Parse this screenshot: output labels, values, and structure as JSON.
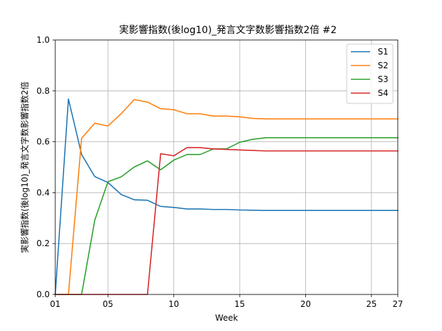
{
  "chart_data": {
    "type": "line",
    "title": "実影響指数(後log10)_発言文字数影響指数2倍 #2",
    "xlabel": "Week",
    "ylabel": "実影響指数(後log10)_発言文字数影響指数2倍",
    "xlim": [
      1,
      27
    ],
    "ylim": [
      0.0,
      1.0
    ],
    "grid": true,
    "legend_position": "top-right",
    "x_ticks": [
      {
        "value": 1,
        "label": "01"
      },
      {
        "value": 5,
        "label": "05"
      },
      {
        "value": 10,
        "label": "10"
      },
      {
        "value": 15,
        "label": "15"
      },
      {
        "value": 20,
        "label": "20"
      },
      {
        "value": 25,
        "label": "25"
      },
      {
        "value": 27,
        "label": "27"
      }
    ],
    "y_ticks": [
      {
        "value": 0.0,
        "label": "0.0"
      },
      {
        "value": 0.2,
        "label": "0.2"
      },
      {
        "value": 0.4,
        "label": "0.4"
      },
      {
        "value": 0.6,
        "label": "0.6"
      },
      {
        "value": 0.8,
        "label": "0.8"
      },
      {
        "value": 1.0,
        "label": "1.0"
      }
    ],
    "series": [
      {
        "name": "S1",
        "color": "#1f77b4",
        "x": [
          1,
          2,
          3,
          4,
          5,
          6,
          7,
          8,
          9,
          10,
          11,
          12,
          13,
          14,
          15,
          16,
          17,
          18,
          19,
          20,
          21,
          22,
          23,
          24,
          25,
          26,
          27
        ],
        "y": [
          0.0,
          0.768,
          0.55,
          0.463,
          0.44,
          0.393,
          0.372,
          0.37,
          0.346,
          0.342,
          0.336,
          0.336,
          0.334,
          0.334,
          0.332,
          0.331,
          0.33,
          0.33,
          0.33,
          0.33,
          0.33,
          0.33,
          0.33,
          0.33,
          0.33,
          0.33,
          0.33
        ]
      },
      {
        "name": "S2",
        "color": "#ff7f0e",
        "x": [
          1,
          2,
          3,
          4,
          5,
          6,
          7,
          8,
          9,
          10,
          11,
          12,
          13,
          14,
          15,
          16,
          17,
          18,
          19,
          20,
          21,
          22,
          23,
          24,
          25,
          26,
          27
        ],
        "y": [
          0.0,
          0.0,
          0.614,
          0.673,
          0.662,
          0.71,
          0.766,
          0.756,
          0.73,
          0.726,
          0.71,
          0.71,
          0.701,
          0.701,
          0.698,
          0.692,
          0.69,
          0.69,
          0.69,
          0.69,
          0.69,
          0.69,
          0.69,
          0.69,
          0.69,
          0.69,
          0.69
        ]
      },
      {
        "name": "S3",
        "color": "#2ca02c",
        "x": [
          1,
          2,
          3,
          4,
          5,
          6,
          7,
          8,
          9,
          10,
          11,
          12,
          13,
          14,
          15,
          16,
          17,
          18,
          19,
          20,
          21,
          22,
          23,
          24,
          25,
          26,
          27
        ],
        "y": [
          0.0,
          0.0,
          0.0,
          0.292,
          0.443,
          0.462,
          0.501,
          0.525,
          0.49,
          0.528,
          0.55,
          0.55,
          0.572,
          0.572,
          0.598,
          0.61,
          0.616,
          0.616,
          0.616,
          0.616,
          0.616,
          0.616,
          0.616,
          0.616,
          0.616,
          0.616,
          0.616
        ]
      },
      {
        "name": "S4",
        "color": "#d62728",
        "x": [
          1,
          2,
          3,
          4,
          5,
          6,
          7,
          8,
          9,
          10,
          11,
          12,
          13,
          14,
          15,
          16,
          17,
          18,
          19,
          20,
          21,
          22,
          23,
          24,
          25,
          26,
          27
        ],
        "y": [
          0.0,
          0.0,
          0.0,
          0.0,
          0.0,
          0.0,
          0.0,
          0.0,
          0.553,
          0.545,
          0.577,
          0.577,
          0.572,
          0.57,
          0.568,
          0.566,
          0.564,
          0.564,
          0.564,
          0.564,
          0.564,
          0.564,
          0.564,
          0.564,
          0.564,
          0.564,
          0.564
        ]
      }
    ]
  }
}
